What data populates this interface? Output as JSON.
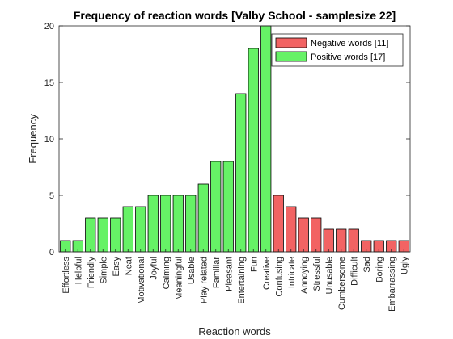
{
  "chart_data": {
    "type": "bar",
    "title": "Frequency of reaction words [Valby School - samplesize 22]",
    "xlabel": "Reaction words",
    "ylabel": "Frequency",
    "ylim": [
      0,
      20
    ],
    "yticks": [
      0,
      5,
      10,
      15,
      20
    ],
    "categories": [
      "Effortless",
      "Helpful",
      "Friendly",
      "Simple",
      "Easy",
      "Neat",
      "Motivational",
      "Joyful",
      "Calming",
      "Meaningful",
      "Usable",
      "Play related",
      "Familiar",
      "Pleasant",
      "Entertaining",
      "Fun",
      "Creative",
      "Confusing",
      "Intricate",
      "Annoying",
      "Stressful",
      "Unusable",
      "Cumbersome",
      "Difficult",
      "Sad",
      "Boring",
      "Embarrassing",
      "Ugly"
    ],
    "values": [
      1,
      1,
      3,
      3,
      3,
      4,
      4,
      5,
      5,
      5,
      5,
      6,
      8,
      8,
      14,
      18,
      20,
      5,
      4,
      3,
      3,
      2,
      2,
      2,
      1,
      1,
      1,
      1
    ],
    "groups": [
      "positive",
      "positive",
      "positive",
      "positive",
      "positive",
      "positive",
      "positive",
      "positive",
      "positive",
      "positive",
      "positive",
      "positive",
      "positive",
      "positive",
      "positive",
      "positive",
      "positive",
      "negative",
      "negative",
      "negative",
      "negative",
      "negative",
      "negative",
      "negative",
      "negative",
      "negative",
      "negative",
      "negative"
    ],
    "legend": [
      {
        "key": "negative",
        "label": "Negative words [11]",
        "color": "#f26363"
      },
      {
        "key": "positive",
        "label": "Positive words [17]",
        "color": "#66f266"
      }
    ],
    "legend_position": "top-right",
    "grid": false
  }
}
